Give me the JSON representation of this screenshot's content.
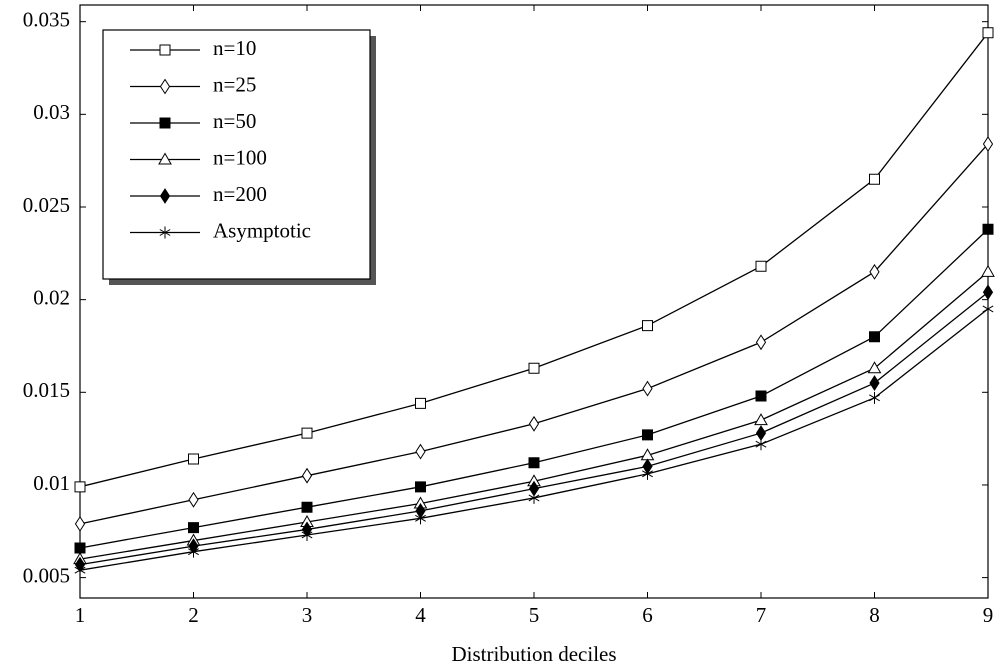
{
  "chart_data": {
    "type": "line",
    "x_label": "Distribution deciles",
    "x": [
      1,
      2,
      3,
      4,
      5,
      6,
      7,
      8,
      9
    ],
    "xlim": [
      1,
      9
    ],
    "xticks": [
      1,
      2,
      3,
      4,
      5,
      6,
      7,
      8,
      9
    ],
    "ylim": [
      0.0039,
      0.0359
    ],
    "yticks": [
      0.005,
      0.01,
      0.015,
      0.02,
      0.025,
      0.03,
      0.035
    ],
    "grid": false,
    "legend": "upper left",
    "series": [
      {
        "name": "n=10",
        "color": "#000000",
        "marker": "square-open",
        "values": [
          0.0099,
          0.0114,
          0.0128,
          0.0144,
          0.0163,
          0.0186,
          0.0218,
          0.0265,
          0.0344
        ]
      },
      {
        "name": "n=25",
        "color": "#000000",
        "marker": "diamond-open",
        "values": [
          0.0079,
          0.0092,
          0.0105,
          0.0118,
          0.0133,
          0.0152,
          0.0177,
          0.0215,
          0.0284
        ]
      },
      {
        "name": "n=50",
        "color": "#000000",
        "marker": "square",
        "values": [
          0.0066,
          0.0077,
          0.0088,
          0.0099,
          0.0112,
          0.0127,
          0.0148,
          0.018,
          0.0238
        ]
      },
      {
        "name": "n=100",
        "color": "#000000",
        "marker": "triangle-open",
        "values": [
          0.006,
          0.007,
          0.008,
          0.009,
          0.0102,
          0.0116,
          0.0135,
          0.0163,
          0.0215
        ]
      },
      {
        "name": "n=200",
        "color": "#000000",
        "marker": "diamond",
        "values": [
          0.0057,
          0.0067,
          0.0076,
          0.0086,
          0.0098,
          0.011,
          0.0128,
          0.0155,
          0.0204
        ]
      },
      {
        "name": "Asymptotic",
        "color": "#000000",
        "marker": "star",
        "values": [
          0.0054,
          0.0064,
          0.0073,
          0.0082,
          0.0093,
          0.0106,
          0.0122,
          0.0147,
          0.0195
        ]
      }
    ]
  }
}
